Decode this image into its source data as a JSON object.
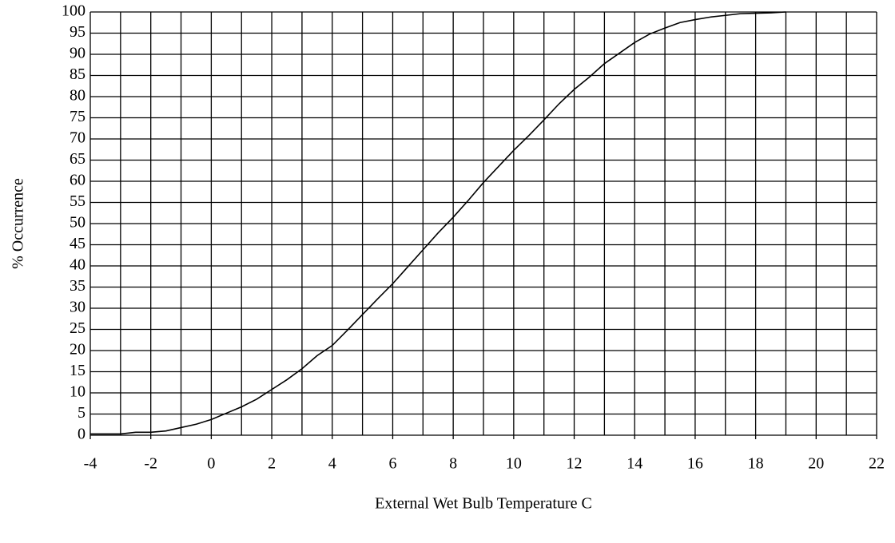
{
  "chart_data": {
    "type": "line",
    "xlabel": "External Wet Bulb Temperature C",
    "ylabel": "% Occurrence",
    "x": [
      -4,
      -3.5,
      -3,
      -2.5,
      -2,
      -1.5,
      -1,
      -0.5,
      0,
      0.5,
      1,
      1.5,
      2,
      2.5,
      3,
      3.5,
      4,
      4.5,
      5,
      5.5,
      6,
      6.5,
      7,
      7.5,
      8,
      8.5,
      9,
      9.5,
      10,
      10.5,
      11,
      11.5,
      12,
      12.5,
      13,
      13.5,
      14,
      14.5,
      15,
      15.5,
      16,
      16.5,
      17,
      17.5,
      18,
      18.5,
      19
    ],
    "series": [
      {
        "color": "#000000",
        "values": [
          0.3,
          0.3,
          0.3,
          0.7,
          0.7,
          1.0,
          1.8,
          2.6,
          3.7,
          5.2,
          6.7,
          8.5,
          10.8,
          13.1,
          15.7,
          18.8,
          21.2,
          24.8,
          28.5,
          32.2,
          35.8,
          39.8,
          43.8,
          47.8,
          51.5,
          55.5,
          59.7,
          63.5,
          67.3,
          70.8,
          74.5,
          78.3,
          81.7,
          84.6,
          87.8,
          90.3,
          92.8,
          94.8,
          96.2,
          97.5,
          98.2,
          98.8,
          99.2,
          99.6,
          99.7,
          99.8,
          100
        ]
      }
    ],
    "xlim": [
      -4,
      22
    ],
    "xticks": [
      -4,
      -2,
      0,
      2,
      4,
      6,
      8,
      10,
      12,
      14,
      16,
      18,
      20,
      22
    ],
    "xticks_minor": [
      -3,
      -1,
      1,
      3,
      5,
      7,
      9,
      11,
      13,
      15,
      17,
      19,
      21
    ],
    "ylim": [
      0,
      100
    ],
    "yticks": [
      0,
      5,
      10,
      15,
      20,
      25,
      30,
      35,
      40,
      45,
      50,
      55,
      60,
      65,
      70,
      75,
      80,
      85,
      90,
      95,
      100
    ],
    "grid": true
  }
}
